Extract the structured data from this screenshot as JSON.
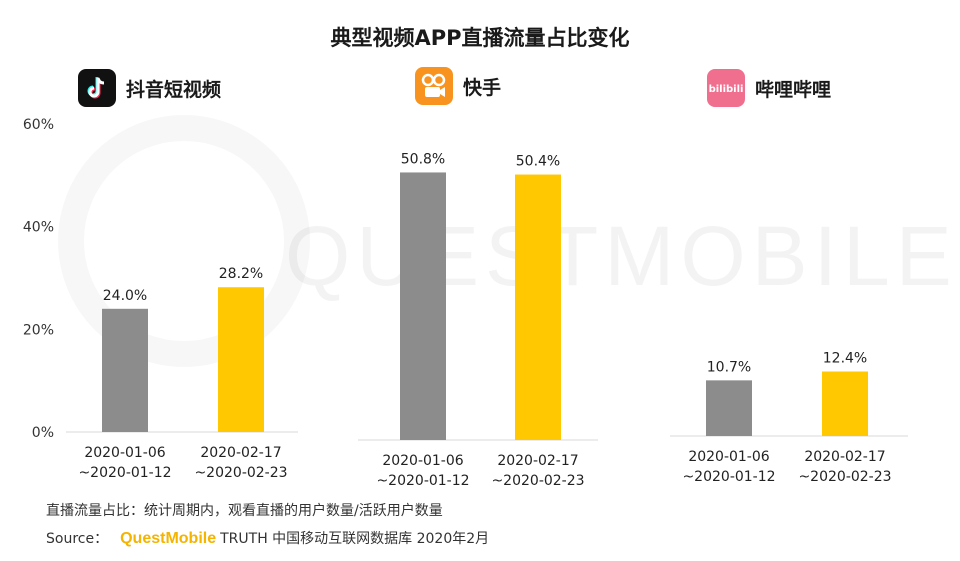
{
  "title": "典型视频APP直播流量占比变化",
  "apps": [
    {
      "name": "抖音短视频",
      "logo_icon": "tiktok-logo-icon"
    },
    {
      "name": "快手",
      "logo_icon": "kuaishou-logo-icon"
    },
    {
      "name": "哔哩哔哩",
      "logo_icon": "bilibili-logo-icon",
      "logo_text": "bilibili"
    }
  ],
  "watermark": "QUESTMOBILE",
  "chart_data": [
    {
      "type": "bar",
      "title": "抖音短视频",
      "categories": [
        "2020-01-06\n~2020-01-12",
        "2020-02-17\n~2020-02-23"
      ],
      "values": [
        24.0,
        28.2
      ],
      "value_labels": [
        "24.0%",
        "28.2%"
      ],
      "ylim": [
        0,
        60
      ],
      "yticks": [
        "0%",
        "20%",
        "40%",
        "60%"
      ],
      "colors": [
        "#8c8c8c",
        "#ffc800"
      ]
    },
    {
      "type": "bar",
      "title": "快手",
      "categories": [
        "2020-01-06\n~2020-01-12",
        "2020-02-17\n~2020-02-23"
      ],
      "values": [
        50.8,
        50.4
      ],
      "value_labels": [
        "50.8%",
        "50.4%"
      ],
      "ylim": [
        0,
        60
      ],
      "colors": [
        "#8c8c8c",
        "#ffc800"
      ]
    },
    {
      "type": "bar",
      "title": "哔哩哔哩",
      "categories": [
        "2020-01-06\n~2020-01-12",
        "2020-02-17\n~2020-02-23"
      ],
      "values": [
        10.7,
        12.4
      ],
      "value_labels": [
        "10.7%",
        "12.4%"
      ],
      "ylim": [
        0,
        60
      ],
      "colors": [
        "#8c8c8c",
        "#ffc800"
      ]
    }
  ],
  "footnote": "直播流量占比：统计周期内，观看直播的用户数量/活跃用户数量",
  "source": {
    "label": "Source：",
    "brand": "QuestMobile",
    "rest": "TRUTH 中国移动互联网数据库 2020年2月"
  }
}
